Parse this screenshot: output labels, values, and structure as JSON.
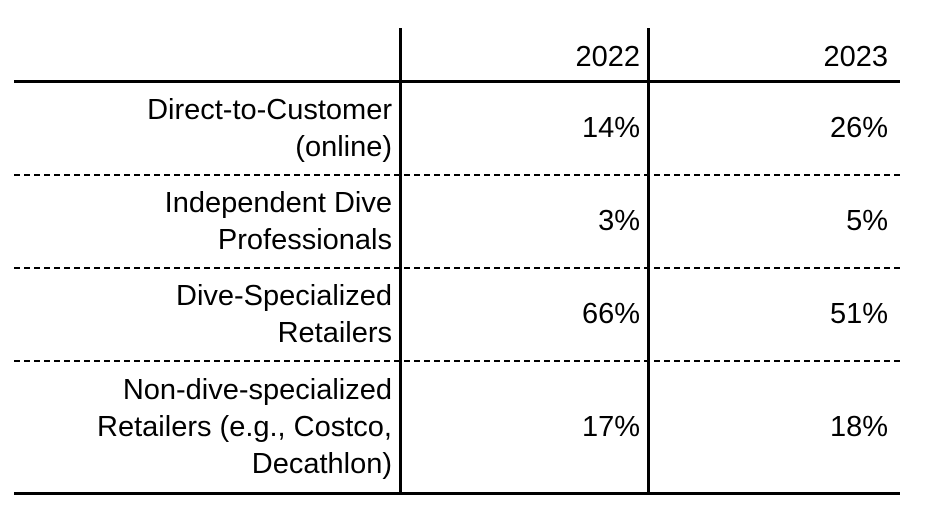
{
  "table": {
    "columns": [
      "",
      "2022",
      "2023"
    ],
    "rows": [
      {
        "label": "Direct-to-Customer\n(online)",
        "v2022": "14%",
        "v2023": "26%"
      },
      {
        "label": "Independent Dive\nProfessionals",
        "v2022": "3%",
        "v2023": "5%"
      },
      {
        "label": "Dive-Specialized\nRetailers",
        "v2022": "66%",
        "v2023": "51%"
      },
      {
        "label": "Non-dive-specialized\nRetailers (e.g., Costco,\nDecathlon)",
        "v2022": "17%",
        "v2023": "18%"
      }
    ]
  }
}
